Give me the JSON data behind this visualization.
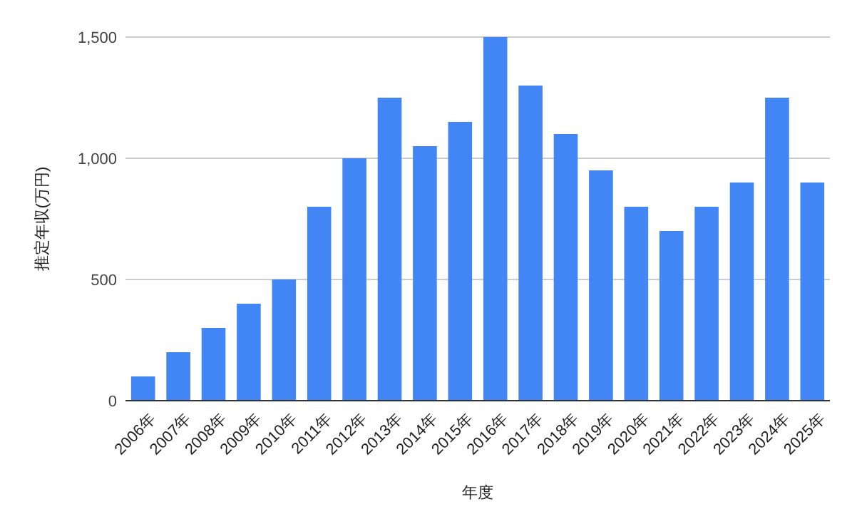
{
  "chart_data": {
    "type": "bar",
    "xlabel": "年度",
    "ylabel": "推定年収(万円)",
    "categories": [
      "2006年",
      "2007年",
      "2008年",
      "2009年",
      "2010年",
      "2011年",
      "2012年",
      "2013年",
      "2014年",
      "2015年",
      "2016年",
      "2017年",
      "2018年",
      "2019年",
      "2020年",
      "2021年",
      "2022年",
      "2023年",
      "2024年",
      "2025年"
    ],
    "values": [
      100,
      200,
      300,
      400,
      500,
      800,
      1000,
      1250,
      1050,
      1150,
      1500,
      1300,
      1100,
      950,
      800,
      700,
      800,
      900,
      1250,
      900
    ],
    "color": "#4285f4",
    "ylim": [
      0,
      1500
    ],
    "yticks": [
      {
        "value": 0,
        "label": "0"
      },
      {
        "value": 500,
        "label": "500"
      },
      {
        "value": 1000,
        "label": "1,000"
      },
      {
        "value": 1500,
        "label": "1,500"
      }
    ],
    "grid": "y"
  }
}
